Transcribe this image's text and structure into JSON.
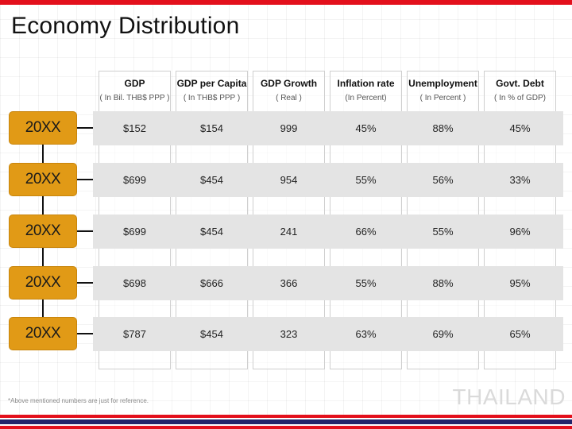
{
  "title": "Economy Distribution",
  "columns": [
    {
      "header": "GDP",
      "sub": "( In Bil. THB$ PPP )"
    },
    {
      "header": "GDP per Capita",
      "sub": "( In THB$ PPP )"
    },
    {
      "header": "GDP Growth",
      "sub": "( Real )"
    },
    {
      "header": "Inflation rate",
      "sub": "(In Percent)"
    },
    {
      "header": "Unemployment",
      "sub": "( In Percent )"
    },
    {
      "header": "Govt. Debt",
      "sub": "( In % of GDP)"
    }
  ],
  "rows": [
    {
      "year": "20XX",
      "values": [
        "$152",
        "$154",
        "999",
        "45%",
        "88%",
        "45%"
      ]
    },
    {
      "year": "20XX",
      "values": [
        "$699",
        "$454",
        "954",
        "55%",
        "56%",
        "33%"
      ]
    },
    {
      "year": "20XX",
      "values": [
        "$699",
        "$454",
        "241",
        "66%",
        "55%",
        "96%"
      ]
    },
    {
      "year": "20XX",
      "values": [
        "$698",
        "$666",
        "366",
        "55%",
        "88%",
        "95%"
      ]
    },
    {
      "year": "20XX",
      "values": [
        "$787",
        "$454",
        "323",
        "63%",
        "69%",
        "65%"
      ]
    }
  ],
  "footnote": "*Above mentioned numbers are just for reference.",
  "watermark": "THAILAND",
  "colors": {
    "accent_red": "#e3101c",
    "accent_blue": "#23246a",
    "pill_orange": "#e19a16",
    "row_band": "#e4e4e4"
  }
}
